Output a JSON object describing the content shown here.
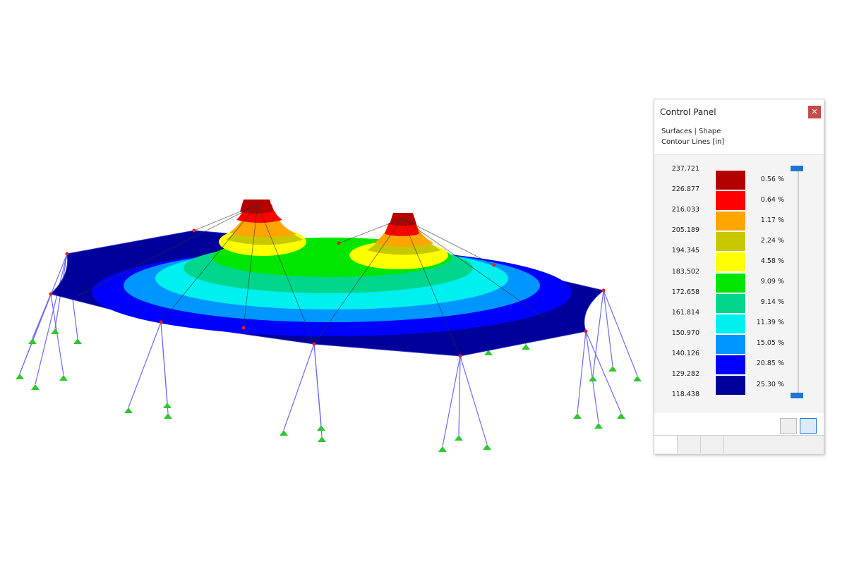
{
  "panel": {
    "title": "Control Panel",
    "subtitle_lines": [
      "Surfaces | Shape",
      "Contour Lines [in]"
    ],
    "legend": {
      "values": [
        "237.721",
        "226.877",
        "216.033",
        "205.189",
        "194.345",
        "183.502",
        "172.658",
        "161.814",
        "150.970",
        "140.126",
        "129.282",
        "118.438"
      ],
      "bands": [
        {
          "color": "#b40000",
          "percent": "0.56 %"
        },
        {
          "color": "#ff0000",
          "percent": "0.64 %"
        },
        {
          "color": "#ffa500",
          "percent": "1.17 %"
        },
        {
          "color": "#c8c800",
          "percent": "2.24 %"
        },
        {
          "color": "#ffff00",
          "percent": "4.58 %"
        },
        {
          "color": "#00e600",
          "percent": "9.09 %"
        },
        {
          "color": "#00d78c",
          "percent": "9.14 %"
        },
        {
          "color": "#00f0f0",
          "percent": "11.39 %"
        },
        {
          "color": "#0096ff",
          "percent": "15.05 %"
        },
        {
          "color": "#0000ff",
          "percent": "20.85 %"
        },
        {
          "color": "#00009b",
          "percent": "25.30 %"
        }
      ]
    }
  }
}
